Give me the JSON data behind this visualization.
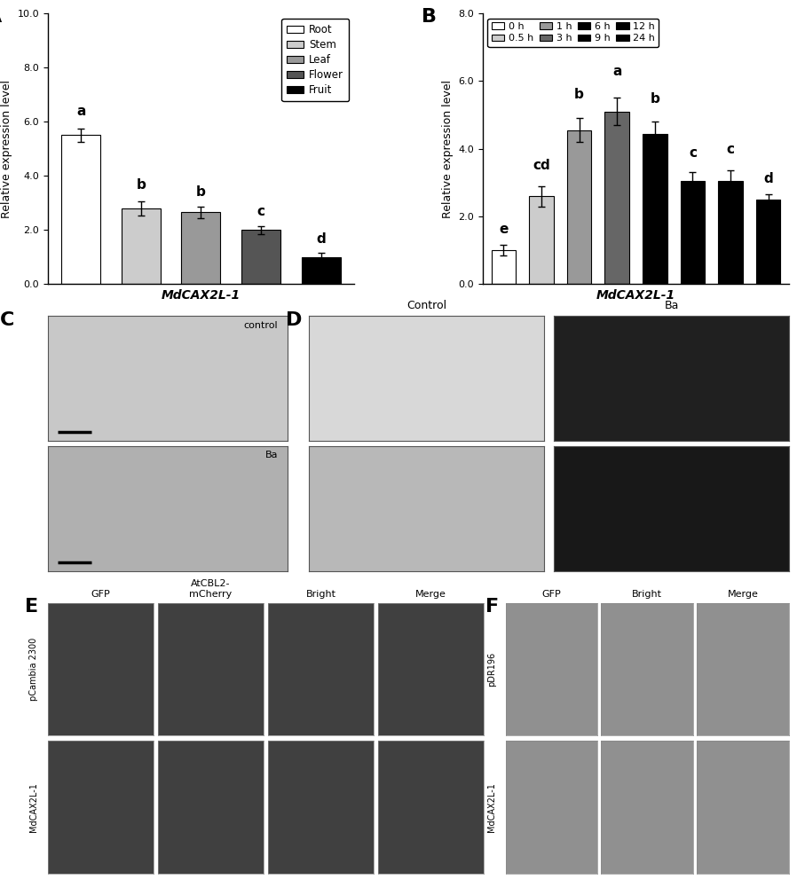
{
  "panelA": {
    "categories": [
      "Root",
      "Stem",
      "Leaf",
      "Flower",
      "Fruit"
    ],
    "values": [
      5.5,
      2.8,
      2.65,
      2.0,
      1.0
    ],
    "errors": [
      0.25,
      0.25,
      0.2,
      0.15,
      0.15
    ],
    "colors": [
      "#ffffff",
      "#cccccc",
      "#999999",
      "#555555",
      "#000000"
    ],
    "edge_color": "#000000",
    "letters": [
      "a",
      "b",
      "b",
      "c",
      "d"
    ],
    "letter_offsets": [
      0.38,
      0.38,
      0.32,
      0.28,
      0.28
    ],
    "ylabel": "Relative expression level",
    "xlabel": "MdCAX2L-1",
    "ylim": [
      0,
      10.0
    ],
    "yticks": [
      0.0,
      2.0,
      4.0,
      6.0,
      8.0,
      10.0
    ],
    "ytick_labels": [
      "0.0",
      "2.0",
      "4.0",
      "6.0",
      "8.0",
      "10.0"
    ]
  },
  "panelB": {
    "categories": [
      "0 h",
      "0.5 h",
      "1 h",
      "3 h",
      "6 h",
      "9 h",
      "12 h",
      "24 h"
    ],
    "values": [
      1.0,
      2.6,
      4.55,
      5.1,
      4.45,
      3.05,
      3.05,
      2.5
    ],
    "errors": [
      0.15,
      0.3,
      0.35,
      0.4,
      0.35,
      0.25,
      0.3,
      0.15
    ],
    "colors": [
      "#ffffff",
      "#cccccc",
      "#999999",
      "#666666",
      "#000000",
      "#000000",
      "#000000",
      "#000000"
    ],
    "edge_color": "#000000",
    "letters": [
      "e",
      "cd",
      "b",
      "a",
      "b",
      "c",
      "c",
      "d"
    ],
    "letter_offsets": [
      0.28,
      0.42,
      0.5,
      0.6,
      0.48,
      0.38,
      0.42,
      0.28
    ],
    "ylabel": "Relative expression level",
    "xlabel": "MdCAX2L-1",
    "ylim": [
      0,
      8.0
    ],
    "yticks": [
      0.0,
      2.0,
      4.0,
      6.0,
      8.0
    ],
    "ytick_labels": [
      "0.0",
      "2.0",
      "4.0",
      "6.0",
      "8.0"
    ],
    "legend_labels": [
      "0 h",
      "0.5 h",
      "1 h",
      "3 h",
      "6 h",
      "9 h",
      "12 h",
      "24 h"
    ],
    "legend_colors": [
      "#ffffff",
      "#cccccc",
      "#999999",
      "#666666",
      "#000000",
      "#000000",
      "#000000",
      "#000000"
    ]
  },
  "background_color": "#ffffff",
  "bar_width": 0.65,
  "panelC_labels": [
    "control",
    "Ba"
  ],
  "panelD_col_labels": [
    "Control",
    "Ba"
  ],
  "panelE_col_labels": [
    "GFP",
    "AtCBL2-\nmCherry",
    "Bright",
    "Merge"
  ],
  "panelE_row_labels": [
    "pCambia 2300",
    "MdCAX2L-1"
  ],
  "panelF_col_labels": [
    "GFP",
    "Bright",
    "Merge"
  ],
  "panelF_row_labels": [
    "pDR196",
    "MdCAX2L-1"
  ]
}
